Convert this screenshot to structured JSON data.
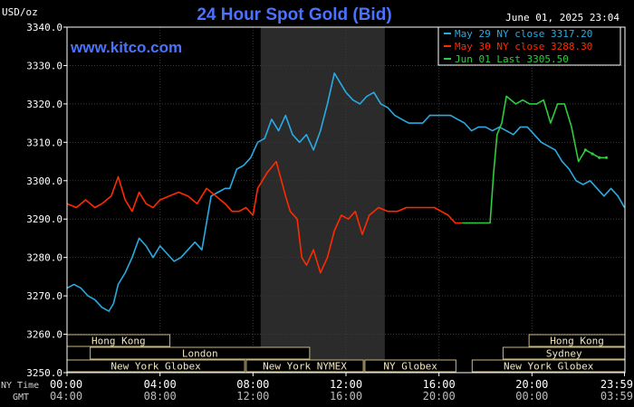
{
  "chart_data": {
    "type": "line",
    "title": "24 Hour Spot Gold (Bid)",
    "watermark": "www.kitco.com",
    "timestamp": "June 01, 2025 23:04",
    "ylabel": "USD/oz",
    "ylim": [
      3250,
      3340
    ],
    "y_ticks": [
      "3340.0",
      "3330.0",
      "3320.0",
      "3310.0",
      "3300.0",
      "3290.0",
      "3280.0",
      "3270.0",
      "3260.0",
      "3250.0"
    ],
    "y_tick_values": [
      3340,
      3330,
      3320,
      3310,
      3300,
      3290,
      3280,
      3270,
      3260,
      3250
    ],
    "xlim": [
      0,
      24
    ],
    "x_ticks": [
      {
        "h": 0,
        "ny": "00:00",
        "gmt": "04:00"
      },
      {
        "h": 4,
        "ny": "04:00",
        "gmt": "08:00"
      },
      {
        "h": 8,
        "ny": "08:00",
        "gmt": "12:00"
      },
      {
        "h": 12,
        "ny": "12:00",
        "gmt": "16:00"
      },
      {
        "h": 16,
        "ny": "16:00",
        "gmt": "20:00"
      },
      {
        "h": 20,
        "ny": "20:00",
        "gmt": "00:00"
      },
      {
        "h": 23.98,
        "ny": "23:59",
        "gmt": "03:59"
      }
    ],
    "x_row_labels": {
      "ny": "NY Time",
      "gmt": "GMT"
    },
    "shaded_session_hours": [
      8.33,
      13.67
    ],
    "grid": true,
    "legend_position": "top-right",
    "series": [
      {
        "name": "May 29 NY close 3317.20",
        "color": "#29abe2",
        "x": [
          0,
          0.3,
          0.6,
          0.9,
          1.2,
          1.5,
          1.8,
          2.0,
          2.2,
          2.5,
          2.8,
          3.1,
          3.4,
          3.7,
          4.0,
          4.3,
          4.6,
          4.9,
          5.2,
          5.5,
          5.8,
          6.2,
          6.5,
          6.8,
          7.0,
          7.3,
          7.6,
          7.9,
          8.2,
          8.5,
          8.8,
          9.1,
          9.4,
          9.7,
          10.0,
          10.3,
          10.6,
          10.9,
          11.2,
          11.5,
          11.8,
          12.0,
          12.3,
          12.6,
          12.9,
          13.2,
          13.5,
          13.8,
          14.1,
          14.4,
          14.7,
          15.0,
          15.3,
          15.6,
          15.9,
          16.2,
          16.5,
          16.8,
          17.1,
          17.4,
          17.7,
          18.0,
          18.3,
          18.6,
          18.9,
          19.2,
          19.5,
          19.8,
          20.1,
          20.4,
          20.7,
          21.0,
          21.3,
          21.6,
          21.9,
          22.2,
          22.5,
          22.8,
          23.1,
          23.4,
          23.7,
          23.98
        ],
        "values": [
          3272,
          3273,
          3272,
          3270,
          3269,
          3267,
          3266,
          3268,
          3273,
          3276,
          3280,
          3285,
          3283,
          3280,
          3283,
          3281,
          3279,
          3280,
          3282,
          3284,
          3282,
          3296,
          3297,
          3298,
          3298,
          3303,
          3304,
          3306,
          3310,
          3311,
          3316,
          3313,
          3317,
          3312,
          3310,
          3312,
          3308,
          3313,
          3320,
          3328,
          3325,
          3323,
          3321,
          3320,
          3322,
          3323,
          3320,
          3319,
          3317,
          3316,
          3315,
          3315,
          3315,
          3317,
          3317,
          3317,
          3317,
          3316,
          3315,
          3313,
          3314,
          3314,
          3313,
          3314,
          3313,
          3312,
          3314,
          3314,
          3312,
          3310,
          3309,
          3308,
          3305,
          3303,
          3300,
          3299,
          3300,
          3298,
          3296,
          3298,
          3296,
          3293
        ]
      },
      {
        "name": "May 30 NY close 3288.30",
        "color": "#ff2a00",
        "x": [
          0,
          0.4,
          0.8,
          1.2,
          1.5,
          1.9,
          2.2,
          2.5,
          2.8,
          3.1,
          3.4,
          3.7,
          4.0,
          4.4,
          4.8,
          5.2,
          5.6,
          6.0,
          6.4,
          6.8,
          7.1,
          7.4,
          7.7,
          8.0,
          8.2,
          8.6,
          9.0,
          9.4,
          9.6,
          9.9,
          10.1,
          10.3,
          10.6,
          10.9,
          11.2,
          11.5,
          11.8,
          12.1,
          12.4,
          12.7,
          13.0,
          13.4,
          13.8,
          14.2,
          14.6,
          15.0,
          15.4,
          15.8,
          16.1,
          16.4,
          16.7,
          17.0
        ],
        "values": [
          3294,
          3293,
          3295,
          3293,
          3294,
          3296,
          3301,
          3295,
          3292,
          3297,
          3294,
          3293,
          3295,
          3296,
          3297,
          3296,
          3294,
          3298,
          3296,
          3294,
          3292,
          3292,
          3293,
          3291,
          3298,
          3302,
          3305,
          3296,
          3292,
          3290,
          3280,
          3278,
          3282,
          3276,
          3280,
          3287,
          3291,
          3290,
          3292,
          3286,
          3291,
          3293,
          3292,
          3292,
          3293,
          3293,
          3293,
          3293,
          3292,
          3291,
          3289,
          3289
        ]
      },
      {
        "name": "Jun 01 Last 3305.50",
        "color": "#2ecc40",
        "x": [
          17.0,
          17.3,
          17.6,
          17.9,
          18.2,
          18.35,
          18.5,
          18.7,
          18.9,
          19.1,
          19.3,
          19.6,
          19.9,
          20.2,
          20.5,
          20.8,
          21.1,
          21.4,
          21.7,
          22.0,
          22.3,
          22.6,
          22.9,
          23.2
        ],
        "values": [
          3289,
          3289,
          3289,
          3289,
          3289,
          3302,
          3312,
          3315,
          3322,
          3321,
          3320,
          3321,
          3320,
          3320,
          3321,
          3315,
          3320,
          3320,
          3314,
          3305,
          3308,
          3307,
          3306,
          3306
        ]
      }
    ]
  },
  "sessions": [
    {
      "name": "Hong Kong",
      "row": 0,
      "start": 0,
      "end": 8
    },
    {
      "name": "London",
      "row": 1,
      "start": 3.1,
      "end": 16.6
    },
    {
      "name": "New York Globex",
      "row": 2,
      "start": 0,
      "end": 12.6
    },
    {
      "name": "New York NYMEX",
      "row": 2,
      "start": 12.7,
      "end": 19.9
    },
    {
      "name": "NY Globex",
      "row": 2,
      "start": 20.0,
      "end": 25.6
    },
    {
      "name": "Hong Kong",
      "row": 0,
      "start": 30.1,
      "end": 36.0
    },
    {
      "name": "Sydney",
      "row": 1,
      "start": 28.5,
      "end": 36.0
    },
    {
      "name": "New York Globex",
      "row": 2,
      "start": 26.6,
      "end": 36.0
    }
  ]
}
